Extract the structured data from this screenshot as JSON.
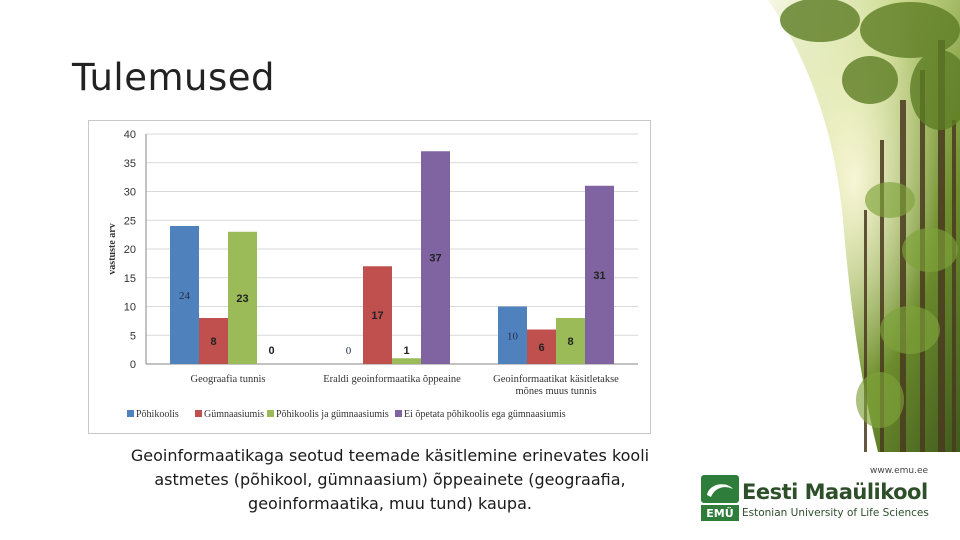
{
  "slide": {
    "title": "Tulemused",
    "caption": "Geoinformaatikaga seotud teemade käsitlemine erinevates kooli astmetes (põhikool, gümnaasium) õppeainete (geograafia, geoinformaatika, muu tund) kaupa."
  },
  "logo": {
    "url": "www.emu.ee",
    "name": "Eesti Maaülikool",
    "subtitle": "Estonian University of Life Sciences",
    "badge": "EMÜ"
  },
  "chart_data": {
    "type": "bar",
    "title": "",
    "xlabel": "",
    "ylabel": "vastuste arv",
    "ylim": [
      0,
      40
    ],
    "yticks": [
      0,
      5,
      10,
      15,
      20,
      25,
      30,
      35,
      40
    ],
    "grid": true,
    "legend_position": "bottom",
    "categories": [
      "Geograafia tunnis",
      "Eraldi geoinformaatika õppeaine",
      "Geoinformaatikat käsitletakse mõnes muus tunnis"
    ],
    "category_label_lines": [
      [
        "Geograafia tunnis"
      ],
      [
        "Eraldi geoinformaatika õppeaine"
      ],
      [
        "Geoinformaatikat käsitletakse",
        "mõnes muus tunnis"
      ]
    ],
    "series": [
      {
        "name": "Põhikoolis",
        "values": [
          24,
          0,
          10
        ],
        "color": "#4f81bd"
      },
      {
        "name": "Gümnaasiumis",
        "values": [
          8,
          17,
          6
        ],
        "color": "#c0504d"
      },
      {
        "name": "Põhikoolis ja gümnaasiumis",
        "values": [
          23,
          1,
          8
        ],
        "color": "#9bbb59"
      },
      {
        "name": "Ei õpetata põhikoolis ega gümnaasiumis",
        "values": [
          0,
          37,
          31
        ],
        "color": "#8064a2"
      }
    ]
  },
  "colors": {
    "gridline": "#d9d9d9",
    "axis": "#868686",
    "label_text": "#333333"
  }
}
